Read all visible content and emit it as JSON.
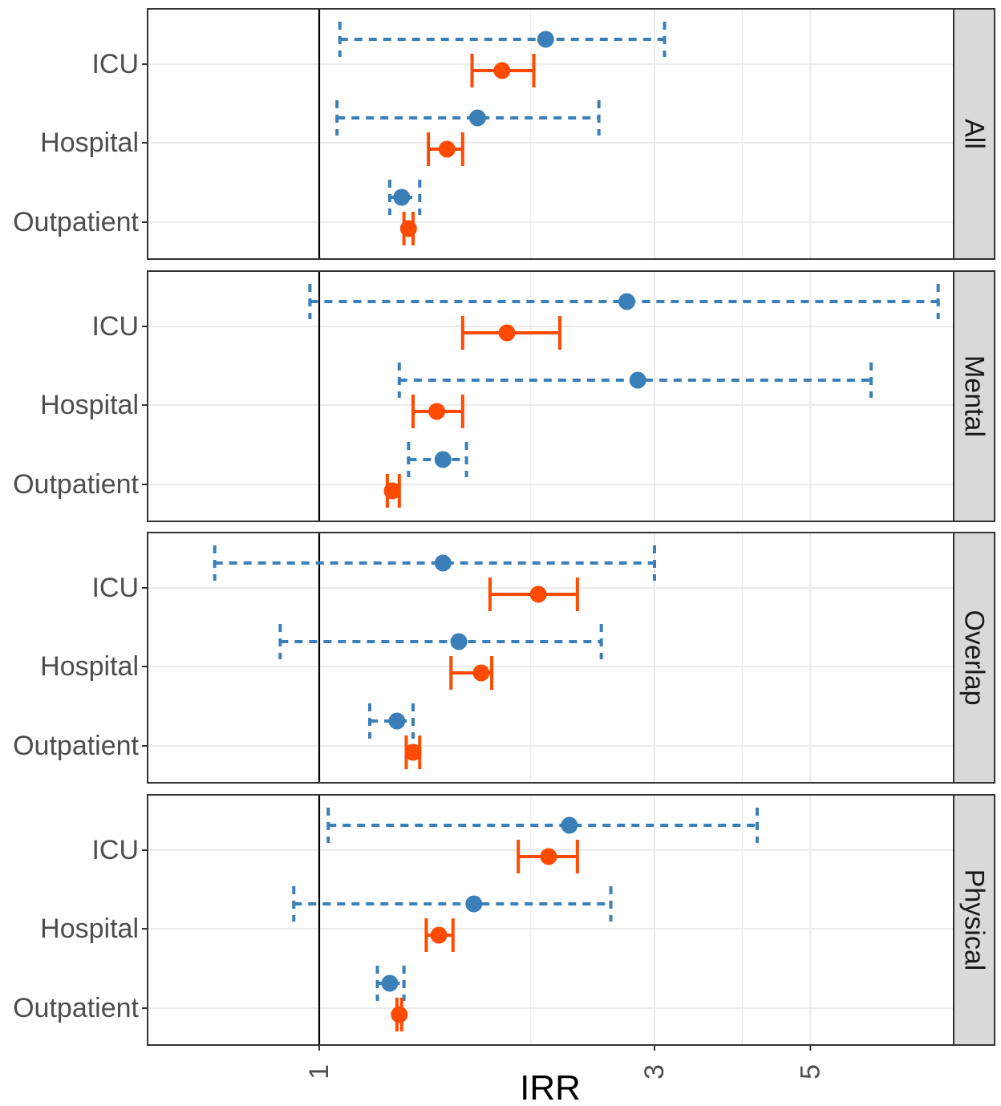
{
  "chart_data": {
    "type": "scatter",
    "xlabel": "IRR",
    "ylabel": "",
    "x_scale": "log",
    "xlim": [
      0.72,
      8.3
    ],
    "x_ticks": [
      1,
      3,
      5
    ],
    "x_tick_labels": [
      "1",
      "3",
      "5"
    ],
    "x_minor_gridlines": [
      2,
      4
    ],
    "categories": [
      "ICU",
      "Hospital",
      "Outpatient"
    ],
    "grid": true,
    "reference_line": 1,
    "legend": "none",
    "series": [
      {
        "style": "dashed",
        "color": "#3a7fb8"
      },
      {
        "style": "solid",
        "color": "#ff4a00"
      }
    ],
    "panels": [
      {
        "label": "All",
        "rows": [
          {
            "category": "ICU",
            "series": 0,
            "estimate": 2.1,
            "lower": 1.07,
            "upper": 3.1
          },
          {
            "category": "ICU",
            "series": 1,
            "estimate": 1.82,
            "lower": 1.65,
            "upper": 2.02
          },
          {
            "category": "Hospital",
            "series": 0,
            "estimate": 1.68,
            "lower": 1.06,
            "upper": 2.5
          },
          {
            "category": "Hospital",
            "series": 1,
            "estimate": 1.52,
            "lower": 1.43,
            "upper": 1.6
          },
          {
            "category": "Outpatient",
            "series": 0,
            "estimate": 1.31,
            "lower": 1.26,
            "upper": 1.39
          },
          {
            "category": "Outpatient",
            "series": 1,
            "estimate": 1.34,
            "lower": 1.32,
            "upper": 1.36
          }
        ]
      },
      {
        "label": "Mental",
        "rows": [
          {
            "category": "ICU",
            "series": 0,
            "estimate": 2.74,
            "lower": 0.97,
            "upper": 7.6
          },
          {
            "category": "ICU",
            "series": 1,
            "estimate": 1.85,
            "lower": 1.6,
            "upper": 2.2
          },
          {
            "category": "Hospital",
            "series": 0,
            "estimate": 2.84,
            "lower": 1.3,
            "upper": 6.1
          },
          {
            "category": "Hospital",
            "series": 1,
            "estimate": 1.47,
            "lower": 1.36,
            "upper": 1.6
          },
          {
            "category": "Outpatient",
            "series": 0,
            "estimate": 1.5,
            "lower": 1.34,
            "upper": 1.62
          },
          {
            "category": "Outpatient",
            "series": 1,
            "estimate": 1.27,
            "lower": 1.25,
            "upper": 1.3
          }
        ]
      },
      {
        "label": "Overlap",
        "rows": [
          {
            "category": "ICU",
            "series": 0,
            "estimate": 1.5,
            "lower": 0.71,
            "upper": 3.0
          },
          {
            "category": "ICU",
            "series": 1,
            "estimate": 2.05,
            "lower": 1.75,
            "upper": 2.33
          },
          {
            "category": "Hospital",
            "series": 0,
            "estimate": 1.58,
            "lower": 0.88,
            "upper": 2.52
          },
          {
            "category": "Hospital",
            "series": 1,
            "estimate": 1.7,
            "lower": 1.54,
            "upper": 1.76
          },
          {
            "category": "Outpatient",
            "series": 0,
            "estimate": 1.29,
            "lower": 1.18,
            "upper": 1.36
          },
          {
            "category": "Outpatient",
            "series": 1,
            "estimate": 1.36,
            "lower": 1.33,
            "upper": 1.39
          }
        ]
      },
      {
        "label": "Physical",
        "rows": [
          {
            "category": "ICU",
            "series": 0,
            "estimate": 2.27,
            "lower": 1.03,
            "upper": 4.2
          },
          {
            "category": "ICU",
            "series": 1,
            "estimate": 2.12,
            "lower": 1.92,
            "upper": 2.33
          },
          {
            "category": "Hospital",
            "series": 0,
            "estimate": 1.66,
            "lower": 0.92,
            "upper": 2.6
          },
          {
            "category": "Hospital",
            "series": 1,
            "estimate": 1.48,
            "lower": 1.42,
            "upper": 1.55
          },
          {
            "category": "Outpatient",
            "series": 0,
            "estimate": 1.26,
            "lower": 1.21,
            "upper": 1.32
          },
          {
            "category": "Outpatient",
            "series": 1,
            "estimate": 1.3,
            "lower": 1.29,
            "upper": 1.31
          }
        ]
      }
    ]
  }
}
